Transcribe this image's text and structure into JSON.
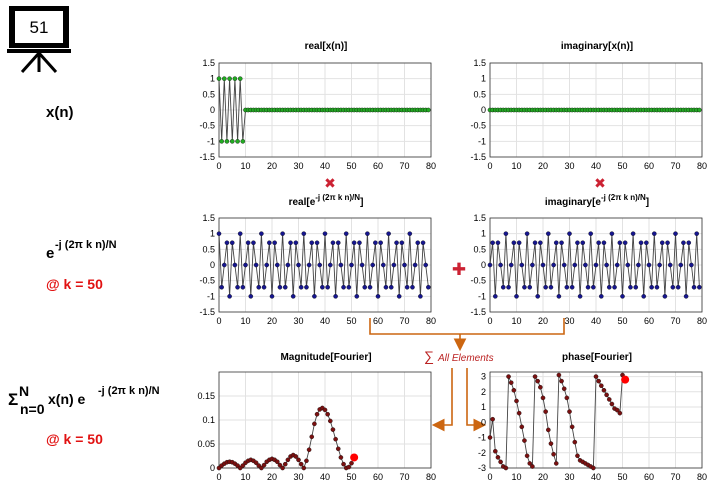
{
  "badge": {
    "number": "51"
  },
  "row_labels": {
    "xn": "x(n)",
    "kernel_base": "e",
    "kernel_exp": "-j (2π k n)/N",
    "k_note": "@ k = 50",
    "sum_sigma": "Σ",
    "sum_upper": "N",
    "sum_lower": "n=0",
    "sum_middle": "x(n) e",
    "sum_exp": "-j (2π k n)/N",
    "sum_k_note": "@ k = 50"
  },
  "operators": {
    "multiply": "✖",
    "plus": "✚",
    "sum_sigma": "∑",
    "sum_text": "All Elements"
  },
  "colors": {
    "green": "#22aa22",
    "navy": "#16168f",
    "maroon": "#7a1010",
    "red_marker": "#ff0000",
    "operator_red": "#cc2233",
    "arrow": "#cc6611"
  },
  "chart_data": [
    {
      "id": "real-xn",
      "type": "line",
      "title": "real[x(n)]",
      "xlim": [
        0,
        80
      ],
      "ylim": [
        -1.5,
        1.5
      ],
      "xticks": [
        "0",
        "10",
        "20",
        "30",
        "40",
        "50",
        "60",
        "70",
        "80"
      ],
      "yticks": [
        "1.5",
        "1",
        "0.5",
        "0",
        "-0.5",
        "-1",
        "-1.5"
      ],
      "grid": true,
      "marker_color": "#22aa22",
      "x": [
        0,
        1,
        2,
        3,
        4,
        5,
        6,
        7,
        8,
        9,
        10,
        11,
        12,
        13,
        14,
        15,
        16,
        17,
        18,
        19,
        20,
        21,
        22,
        23,
        24,
        25,
        26,
        27,
        28,
        29,
        30,
        31,
        32,
        33,
        34,
        35,
        36,
        37,
        38,
        39,
        40,
        41,
        42,
        43,
        44,
        45,
        46,
        47,
        48,
        49,
        50,
        51,
        52,
        53,
        54,
        55,
        56,
        57,
        58,
        59,
        60,
        61,
        62,
        63,
        64,
        65,
        66,
        67,
        68,
        69,
        70,
        71,
        72,
        73,
        74,
        75,
        76,
        77,
        78,
        79
      ],
      "y": [
        1,
        -1,
        1,
        -1,
        1,
        -1,
        1,
        -1,
        1,
        -1,
        0,
        0,
        0,
        0,
        0,
        0,
        0,
        0,
        0,
        0,
        0,
        0,
        0,
        0,
        0,
        0,
        0,
        0,
        0,
        0,
        0,
        0,
        0,
        0,
        0,
        0,
        0,
        0,
        0,
        0,
        0,
        0,
        0,
        0,
        0,
        0,
        0,
        0,
        0,
        0,
        0,
        0,
        0,
        0,
        0,
        0,
        0,
        0,
        0,
        0,
        0,
        0,
        0,
        0,
        0,
        0,
        0,
        0,
        0,
        0,
        0,
        0,
        0,
        0,
        0,
        0,
        0,
        0,
        0,
        0
      ]
    },
    {
      "id": "imag-xn",
      "type": "line",
      "title": "imaginary[x(n)]",
      "xlim": [
        0,
        80
      ],
      "ylim": [
        -1.5,
        1.5
      ],
      "xticks": [
        "0",
        "10",
        "20",
        "30",
        "40",
        "50",
        "60",
        "70",
        "80"
      ],
      "yticks": [
        "1.5",
        "1",
        "0.5",
        "0",
        "-0.5",
        "-1",
        "-1.5"
      ],
      "grid": true,
      "marker_color": "#22aa22",
      "x": [
        0,
        1,
        2,
        3,
        4,
        5,
        6,
        7,
        8,
        9,
        10,
        11,
        12,
        13,
        14,
        15,
        16,
        17,
        18,
        19,
        20,
        21,
        22,
        23,
        24,
        25,
        26,
        27,
        28,
        29,
        30,
        31,
        32,
        33,
        34,
        35,
        36,
        37,
        38,
        39,
        40,
        41,
        42,
        43,
        44,
        45,
        46,
        47,
        48,
        49,
        50,
        51,
        52,
        53,
        54,
        55,
        56,
        57,
        58,
        59,
        60,
        61,
        62,
        63,
        64,
        65,
        66,
        67,
        68,
        69,
        70,
        71,
        72,
        73,
        74,
        75,
        76,
        77,
        78,
        79
      ],
      "y": [
        0,
        0,
        0,
        0,
        0,
        0,
        0,
        0,
        0,
        0,
        0,
        0,
        0,
        0,
        0,
        0,
        0,
        0,
        0,
        0,
        0,
        0,
        0,
        0,
        0,
        0,
        0,
        0,
        0,
        0,
        0,
        0,
        0,
        0,
        0,
        0,
        0,
        0,
        0,
        0,
        0,
        0,
        0,
        0,
        0,
        0,
        0,
        0,
        0,
        0,
        0,
        0,
        0,
        0,
        0,
        0,
        0,
        0,
        0,
        0,
        0,
        0,
        0,
        0,
        0,
        0,
        0,
        0,
        0,
        0,
        0,
        0,
        0,
        0,
        0,
        0,
        0,
        0,
        0,
        0
      ]
    },
    {
      "id": "real-kernel",
      "type": "line",
      "title": "real[e",
      "title_sup": "-j (2π k n)/N",
      "title_end": "]",
      "xlim": [
        0,
        80
      ],
      "ylim": [
        -1.5,
        1.5
      ],
      "xticks": [
        "0",
        "10",
        "20",
        "30",
        "40",
        "50",
        "60",
        "70",
        "80"
      ],
      "yticks": [
        "1.5",
        "1",
        "0.5",
        "0",
        "-0.5",
        "-1",
        "-1.5"
      ],
      "grid": true,
      "marker_color": "#16168f",
      "x": [
        0,
        1,
        2,
        3,
        4,
        5,
        6,
        7,
        8,
        9,
        10,
        11,
        12,
        13,
        14,
        15,
        16,
        17,
        18,
        19,
        20,
        21,
        22,
        23,
        24,
        25,
        26,
        27,
        28,
        29,
        30,
        31,
        32,
        33,
        34,
        35,
        36,
        37,
        38,
        39,
        40,
        41,
        42,
        43,
        44,
        45,
        46,
        47,
        48,
        49,
        50,
        51,
        52,
        53,
        54,
        55,
        56,
        57,
        58,
        59,
        60,
        61,
        62,
        63,
        64,
        65,
        66,
        67,
        68,
        69,
        70,
        71,
        72,
        73,
        74,
        75,
        76,
        77,
        78,
        79
      ],
      "y": [
        1,
        -0.71,
        0,
        0.71,
        -1,
        0.71,
        0,
        -0.71,
        1,
        -0.71,
        0,
        0.71,
        -1,
        0.71,
        0,
        -0.71,
        1,
        -0.71,
        0,
        0.71,
        -1,
        0.71,
        0,
        -0.71,
        1,
        -0.71,
        0,
        0.71,
        -1,
        0.71,
        0,
        -0.71,
        1,
        -0.71,
        0,
        0.71,
        -1,
        0.71,
        0,
        -0.71,
        1,
        -0.71,
        0,
        0.71,
        -1,
        0.71,
        0,
        -0.71,
        1,
        -0.71,
        0,
        0.71,
        -1,
        0.71,
        0,
        -0.71,
        1,
        -0.71,
        0,
        0.71,
        -1,
        0.71,
        0,
        -0.71,
        1,
        -0.71,
        0,
        0.71,
        -1,
        0.71,
        0,
        -0.71,
        1,
        -0.71,
        0,
        0.71,
        -1,
        0.71,
        0,
        -0.71
      ]
    },
    {
      "id": "imag-kernel",
      "type": "line",
      "title": "imaginary[e",
      "title_sup": "-j (2π k n)/N",
      "title_end": "]",
      "xlim": [
        0,
        80
      ],
      "ylim": [
        -1.5,
        1.5
      ],
      "xticks": [
        "0",
        "10",
        "20",
        "30",
        "40",
        "50",
        "60",
        "70",
        "80"
      ],
      "yticks": [
        "1.5",
        "1",
        "0.5",
        "0",
        "-0.5",
        "-1",
        "-1.5"
      ],
      "grid": true,
      "marker_color": "#16168f",
      "x": [
        0,
        1,
        2,
        3,
        4,
        5,
        6,
        7,
        8,
        9,
        10,
        11,
        12,
        13,
        14,
        15,
        16,
        17,
        18,
        19,
        20,
        21,
        22,
        23,
        24,
        25,
        26,
        27,
        28,
        29,
        30,
        31,
        32,
        33,
        34,
        35,
        36,
        37,
        38,
        39,
        40,
        41,
        42,
        43,
        44,
        45,
        46,
        47,
        48,
        49,
        50,
        51,
        52,
        53,
        54,
        55,
        56,
        57,
        58,
        59,
        60,
        61,
        62,
        63,
        64,
        65,
        66,
        67,
        68,
        69,
        70,
        71,
        72,
        73,
        74,
        75,
        76,
        77,
        78,
        79
      ],
      "y": [
        0,
        0.71,
        -1,
        0.71,
        0,
        -0.71,
        1,
        -0.71,
        0,
        0.71,
        -1,
        0.71,
        0,
        -0.71,
        1,
        -0.71,
        0,
        0.71,
        -1,
        0.71,
        0,
        -0.71,
        1,
        -0.71,
        0,
        0.71,
        -1,
        0.71,
        0,
        -0.71,
        1,
        -0.71,
        0,
        0.71,
        -1,
        0.71,
        0,
        -0.71,
        1,
        -0.71,
        0,
        0.71,
        -1,
        0.71,
        0,
        -0.71,
        1,
        -0.71,
        0,
        0.71,
        -1,
        0.71,
        0,
        -0.71,
        1,
        -0.71,
        0,
        0.71,
        -1,
        0.71,
        0,
        -0.71,
        1,
        -0.71,
        0,
        0.71,
        -1,
        0.71,
        0,
        -0.71,
        1,
        -0.71,
        0,
        0.71,
        -1,
        0.71,
        0,
        -0.71,
        1,
        -0.71
      ]
    },
    {
      "id": "magnitude",
      "type": "line",
      "title": "Magnitude[Fourier]",
      "xlim": [
        0,
        80
      ],
      "ylim": [
        0,
        0.2
      ],
      "xticks": [
        "0",
        "10",
        "20",
        "30",
        "40",
        "50",
        "60",
        "70",
        "80"
      ],
      "yticks": [
        "0.15",
        "0.1",
        "0.05",
        "0"
      ],
      "ytick_values": [
        0.15,
        0.1,
        0.05,
        0
      ],
      "grid": true,
      "marker_color": "#7a1010",
      "x": [
        0,
        1,
        2,
        3,
        4,
        5,
        6,
        7,
        8,
        9,
        10,
        11,
        12,
        13,
        14,
        15,
        16,
        17,
        18,
        19,
        20,
        21,
        22,
        23,
        24,
        25,
        26,
        27,
        28,
        29,
        30,
        31,
        32,
        33,
        34,
        35,
        36,
        37,
        38,
        39,
        40,
        41,
        42,
        43,
        44,
        45,
        46,
        47,
        48,
        49,
        50
      ],
      "y": [
        0,
        0.005,
        0.009,
        0.012,
        0.013,
        0.012,
        0.009,
        0.005,
        0,
        0.005,
        0.011,
        0.015,
        0.017,
        0.015,
        0.011,
        0.005,
        0,
        0.006,
        0.013,
        0.017,
        0.019,
        0.017,
        0.013,
        0.006,
        0,
        0.008,
        0.017,
        0.024,
        0.027,
        0.024,
        0.017,
        0.008,
        0,
        0.015,
        0.038,
        0.065,
        0.092,
        0.112,
        0.122,
        0.125,
        0.121,
        0.112,
        0.098,
        0.08,
        0.06,
        0.04,
        0.022,
        0.008,
        0,
        0.002,
        0.01
      ],
      "highlight": {
        "x": 51,
        "y": 0.022
      }
    },
    {
      "id": "phase",
      "type": "line",
      "title": "phase[Fourier]",
      "xlim": [
        0,
        80
      ],
      "ylim": [
        -3,
        3.3
      ],
      "xticks": [
        "0",
        "10",
        "20",
        "30",
        "40",
        "50",
        "60",
        "70",
        "80"
      ],
      "yticks": [
        "3",
        "2",
        "1",
        "0",
        "-1",
        "-2",
        "-3"
      ],
      "ytick_values": [
        3,
        2,
        1,
        0,
        -1,
        -2,
        -3
      ],
      "grid": true,
      "marker_color": "#7a1010",
      "x": [
        0,
        1,
        2,
        3,
        4,
        5,
        6,
        7,
        8,
        9,
        10,
        11,
        12,
        13,
        14,
        15,
        16,
        17,
        18,
        19,
        20,
        21,
        22,
        23,
        24,
        25,
        26,
        27,
        28,
        29,
        30,
        31,
        32,
        33,
        34,
        35,
        36,
        37,
        38,
        39,
        40,
        41,
        42,
        43,
        44,
        45,
        46,
        47,
        48,
        49,
        50
      ],
      "y": [
        -1,
        0.2,
        -1.9,
        -2.3,
        -2.6,
        -2.9,
        -3,
        3,
        2.6,
        2.1,
        1.4,
        0.6,
        -0.3,
        -1.2,
        -2.2,
        -2.7,
        -2.9,
        3,
        2.7,
        2.3,
        1.6,
        0.7,
        -0.5,
        -1.4,
        -2.1,
        -2.7,
        3.1,
        2.7,
        2.2,
        1.6,
        0.7,
        -0.3,
        -1.3,
        -2.2,
        -2.5,
        -2.6,
        -2.7,
        -2.8,
        -2.9,
        -3,
        3,
        2.7,
        2.4,
        2.1,
        1.8,
        1.5,
        1.2,
        0.9,
        0.8,
        0.6,
        3.1
      ],
      "highlight": {
        "x": 51,
        "y": 2.8
      }
    }
  ]
}
